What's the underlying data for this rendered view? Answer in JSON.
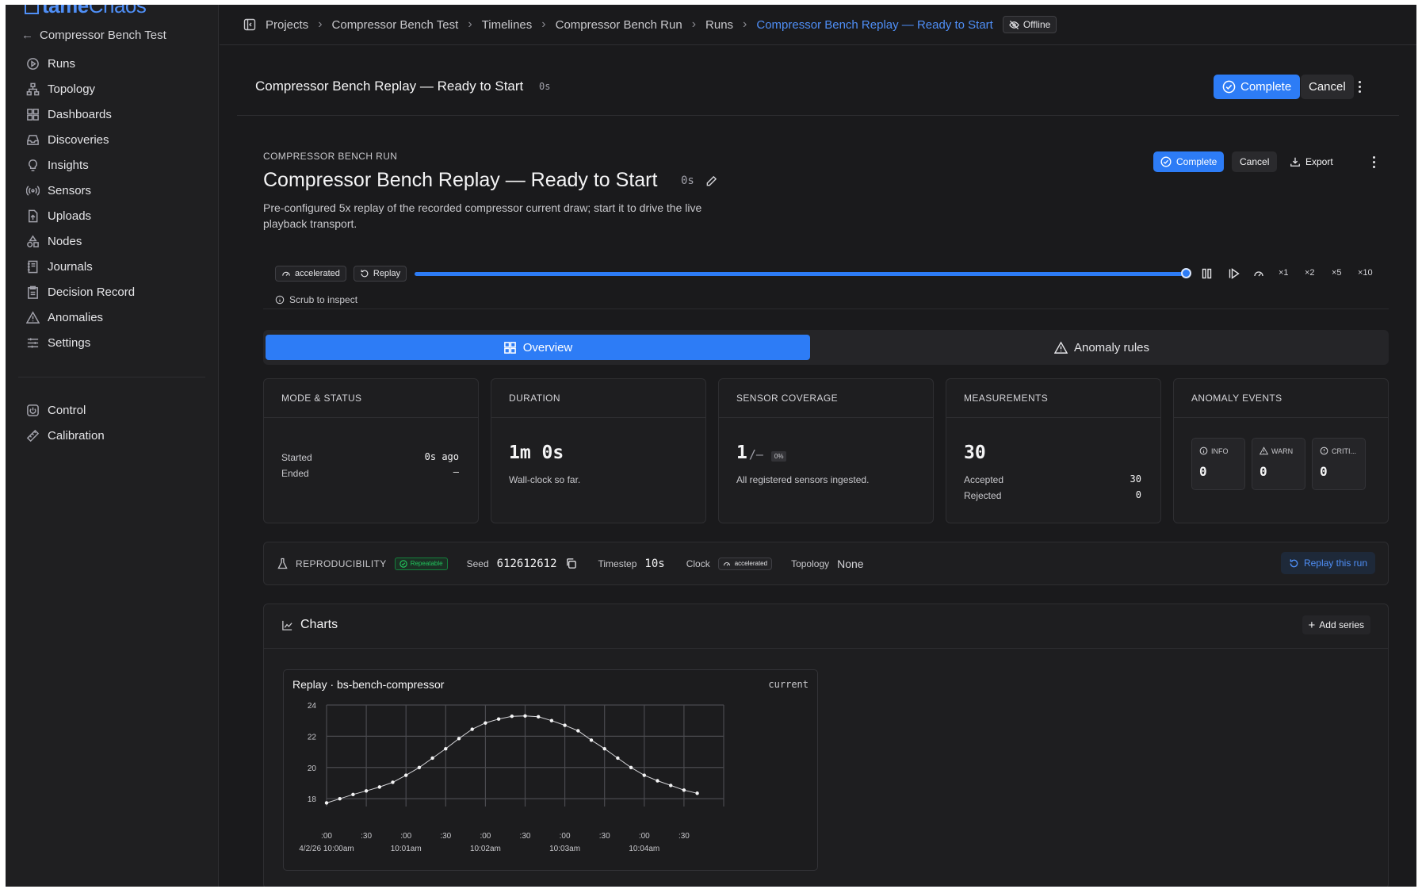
{
  "app": {
    "logo_main": "tame",
    "logo_accent": "Chaos",
    "back_label": "Compressor Bench Test"
  },
  "sidebar": {
    "items": [
      {
        "label": "Runs",
        "icon": "play-circle-icon"
      },
      {
        "label": "Topology",
        "icon": "topology-icon"
      },
      {
        "label": "Dashboards",
        "icon": "grid-icon"
      },
      {
        "label": "Discoveries",
        "icon": "inbox-icon"
      },
      {
        "label": "Insights",
        "icon": "lightbulb-icon"
      },
      {
        "label": "Sensors",
        "icon": "radio-icon"
      },
      {
        "label": "Uploads",
        "icon": "upload-file-icon"
      },
      {
        "label": "Nodes",
        "icon": "shapes-icon"
      },
      {
        "label": "Journals",
        "icon": "notebook-icon"
      },
      {
        "label": "Decision Record",
        "icon": "clipboard-icon"
      },
      {
        "label": "Anomalies",
        "icon": "warning-icon"
      },
      {
        "label": "Settings",
        "icon": "sliders-icon"
      }
    ],
    "secondary": [
      {
        "label": "Control",
        "icon": "power-icon"
      },
      {
        "label": "Calibration",
        "icon": "ruler-icon"
      }
    ]
  },
  "breadcrumb": {
    "items": [
      "Projects",
      "Compressor Bench Test",
      "Timelines",
      "Compressor Bench Run",
      "Runs"
    ],
    "current": "Compressor Bench Replay — Ready to Start",
    "offline": "Offline"
  },
  "header": {
    "title": "Compressor Bench Replay — Ready to Start",
    "duration": "0s",
    "complete": "Complete",
    "cancel": "Cancel"
  },
  "run": {
    "eyebrow": "COMPRESSOR BENCH RUN",
    "title": "Compressor Bench Replay — Ready to Start",
    "duration": "0s",
    "description": "Pre-configured 5x replay of the recorded compressor current draw; start it to drive the live playback transport.",
    "complete": "Complete",
    "cancel": "Cancel",
    "export": "Export"
  },
  "playback": {
    "mode_chip": "accelerated",
    "replay_chip": "Replay",
    "progress": 1.0,
    "speeds": [
      "×1",
      "×2",
      "×5",
      "×10"
    ],
    "scrub_hint": "Scrub to inspect"
  },
  "tabs": [
    {
      "label": "Overview",
      "active": true
    },
    {
      "label": "Anomaly rules",
      "active": false
    }
  ],
  "cards": {
    "mode": {
      "title": "MODE & STATUS",
      "started_label": "Started",
      "started_value": "0s ago",
      "ended_label": "Ended",
      "ended_value": "—"
    },
    "duration": {
      "title": "DURATION",
      "value": "1m 0s",
      "caption": "Wall-clock so far."
    },
    "coverage": {
      "title": "SENSOR COVERAGE",
      "value": "1",
      "suffix": "/—",
      "pct": "0%",
      "caption": "All registered sensors ingested."
    },
    "measurements": {
      "title": "MEASUREMENTS",
      "value": "30",
      "accepted_label": "Accepted",
      "accepted": "30",
      "rejected_label": "Rejected",
      "rejected": "0"
    },
    "anomalies": {
      "title": "ANOMALY EVENTS",
      "info_label": "INFO",
      "info": "0",
      "warn_label": "WARN",
      "warn": "0",
      "crit_label": "CRITI...",
      "crit": "0"
    }
  },
  "repro": {
    "label": "REPRODUCIBILITY",
    "badge": "Repeatable",
    "seed_label": "Seed",
    "seed": "612612612",
    "timestep_label": "Timestep",
    "timestep": "10s",
    "clock_label": "Clock",
    "clock": "accelerated",
    "topology_label": "Topology",
    "topology": "None",
    "replay_button": "Replay this run"
  },
  "charts": {
    "title": "Charts",
    "add_series": "Add series",
    "card_title": "Replay · bs-bench-compressor",
    "card_metric": "current"
  },
  "colors": {
    "accent": "#2d7cf6",
    "green": "#22c55e",
    "bg": "#1a1a1c"
  },
  "chart_data": {
    "type": "line",
    "title": "Replay · bs-bench-compressor",
    "ylabel": "",
    "xlabel": "",
    "ylim": [
      17.5,
      24
    ],
    "yticks": [
      18,
      20,
      22,
      24
    ],
    "xtick_labels": [
      ":00",
      ":30",
      ":00",
      ":30",
      ":00",
      ":30",
      ":00",
      ":30",
      ":00",
      ":30"
    ],
    "xtick_sublabels": [
      "4/2/26 10:00am",
      "",
      "10:01am",
      "",
      "10:02am",
      "",
      "10:03am",
      "",
      "10:04am",
      ""
    ],
    "x_start_seconds": 0,
    "x_step_seconds": 10,
    "series": [
      {
        "values": [
          17.73,
          18.0,
          18.27,
          18.5,
          18.75,
          19.05,
          19.5,
          20.0,
          20.6,
          21.2,
          21.85,
          22.45,
          22.85,
          23.1,
          23.28,
          23.3,
          23.25,
          23.0,
          22.7,
          22.35,
          21.75,
          21.2,
          20.6,
          20.0,
          19.5,
          19.15,
          18.85,
          18.55,
          18.35
        ]
      }
    ]
  }
}
